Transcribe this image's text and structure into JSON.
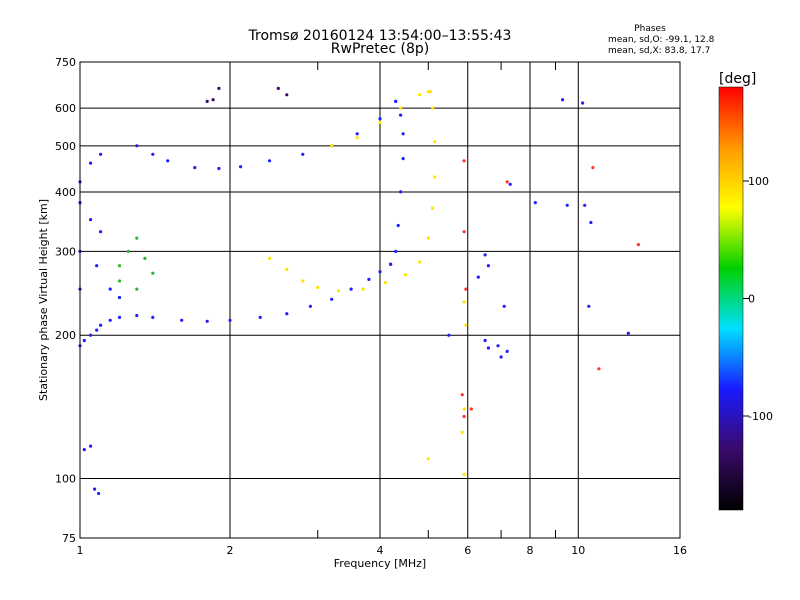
{
  "chart_data": {
    "type": "scatter",
    "title": "Tromsø 20160124 13:54:00–13:55:43",
    "subtitle": "RwPretec (8p)",
    "xlabel": "Frequency [MHz]",
    "ylabel": "Stationary phase Virtual Height [km]",
    "x_scale": "log",
    "y_scale": "log",
    "xlim": [
      1,
      16
    ],
    "ylim": [
      75,
      750
    ],
    "x_ticks": [
      1,
      2,
      4,
      6,
      8,
      10,
      16
    ],
    "x_tick_labels": [
      "1",
      "2",
      "4",
      "6",
      "8",
      "10",
      "16"
    ],
    "x_minor_ticks": [
      3,
      5,
      7,
      9
    ],
    "y_ticks": [
      75,
      100,
      200,
      300,
      400,
      500,
      600,
      750
    ],
    "y_tick_labels": [
      "75",
      "100",
      "200",
      "300",
      "400",
      "500",
      "600",
      "750"
    ],
    "grid": true,
    "stats": {
      "heading": "Phases",
      "line_o": "mean, sd,O: -99.1, 12.8",
      "line_x": "mean, sd,X:  83.8, 17.7"
    },
    "colorbar": {
      "label": "[deg]",
      "range": [
        -180,
        180
      ],
      "ticks": [
        100,
        0,
        -100
      ],
      "tick_labels": [
        "100",
        "0",
        "-100"
      ],
      "colors": [
        "#000000",
        "#3a0a6a",
        "#1a1aff",
        "#00e0ff",
        "#00d000",
        "#ffff00",
        "#ff9900",
        "#ff0000"
      ]
    },
    "series": [
      {
        "color": "#1e1eff",
        "phase": -100,
        "points": [
          [
            1.0,
            190
          ],
          [
            1.02,
            195
          ],
          [
            1.05,
            200
          ],
          [
            1.08,
            205
          ],
          [
            1.1,
            210
          ],
          [
            1.15,
            215
          ],
          [
            1.2,
            218
          ],
          [
            1.3,
            220
          ],
          [
            1.4,
            218
          ],
          [
            1.6,
            215
          ],
          [
            1.8,
            214
          ],
          [
            2.0,
            215
          ],
          [
            2.3,
            218
          ],
          [
            2.6,
            222
          ],
          [
            2.9,
            230
          ],
          [
            3.2,
            238
          ],
          [
            3.5,
            250
          ],
          [
            3.8,
            262
          ],
          [
            4.0,
            272
          ],
          [
            4.2,
            282
          ]
        ]
      },
      {
        "color": "#1e1eff",
        "phase": -100,
        "points": [
          [
            4.2,
            282
          ],
          [
            4.3,
            300
          ],
          [
            4.35,
            340
          ],
          [
            4.4,
            400
          ],
          [
            4.45,
            470
          ],
          [
            4.45,
            530
          ],
          [
            4.4,
            580
          ],
          [
            4.3,
            620
          ]
        ]
      },
      {
        "color": "#1e1eff",
        "phase": -100,
        "points": [
          [
            1.3,
            500
          ],
          [
            1.4,
            480
          ],
          [
            1.5,
            465
          ],
          [
            1.7,
            450
          ],
          [
            1.9,
            448
          ],
          [
            2.1,
            452
          ],
          [
            2.4,
            465
          ],
          [
            2.8,
            480
          ],
          [
            3.2,
            500
          ],
          [
            3.6,
            530
          ],
          [
            4.0,
            570
          ],
          [
            4.3,
            620
          ]
        ]
      },
      {
        "color": "#ffe400",
        "phase": 100,
        "points": [
          [
            2.4,
            290
          ],
          [
            2.6,
            275
          ],
          [
            2.8,
            260
          ],
          [
            3.0,
            252
          ],
          [
            3.3,
            248
          ],
          [
            3.7,
            250
          ],
          [
            4.1,
            258
          ],
          [
            4.5,
            268
          ],
          [
            4.8,
            285
          ],
          [
            5.0,
            320
          ],
          [
            5.1,
            370
          ],
          [
            5.15,
            430
          ],
          [
            5.15,
            510
          ],
          [
            5.1,
            600
          ],
          [
            5.05,
            650
          ]
        ]
      },
      {
        "color": "#ffe400",
        "phase": 100,
        "points": [
          [
            3.2,
            500
          ],
          [
            3.6,
            520
          ],
          [
            4.0,
            560
          ],
          [
            4.4,
            600
          ],
          [
            4.8,
            640
          ],
          [
            5.0,
            650
          ]
        ]
      },
      {
        "color": "#2ab82a",
        "phase": 20,
        "points": [
          [
            1.2,
            280
          ],
          [
            1.25,
            300
          ],
          [
            1.3,
            320
          ],
          [
            1.35,
            290
          ],
          [
            1.4,
            270
          ],
          [
            1.2,
            260
          ],
          [
            1.3,
            250
          ]
        ]
      },
      {
        "color": "#1e1eff",
        "phase": -100,
        "points": [
          [
            1.0,
            420
          ],
          [
            1.05,
            460
          ],
          [
            1.1,
            480
          ],
          [
            1.0,
            380
          ],
          [
            1.05,
            350
          ],
          [
            1.1,
            330
          ],
          [
            1.0,
            300
          ],
          [
            1.08,
            280
          ],
          [
            1.15,
            250
          ],
          [
            1.2,
            240
          ],
          [
            1.0,
            250
          ]
        ]
      },
      {
        "color": "#1e1eff",
        "phase": -100,
        "points": [
          [
            1.02,
            115
          ],
          [
            1.05,
            117
          ],
          [
            1.07,
            95
          ],
          [
            1.09,
            93
          ]
        ]
      },
      {
        "color": "#ffe400",
        "phase": 100,
        "points": [
          [
            5.9,
            235
          ],
          [
            5.95,
            210
          ],
          [
            5.9,
            140
          ],
          [
            5.85,
            125
          ],
          [
            5.0,
            110
          ],
          [
            5.9,
            102
          ]
        ]
      },
      {
        "color": "#1e1eff",
        "phase": -100,
        "points": [
          [
            6.5,
            295
          ],
          [
            6.6,
            280
          ],
          [
            6.5,
            195
          ],
          [
            6.6,
            188
          ],
          [
            6.9,
            190
          ],
          [
            7.2,
            185
          ],
          [
            7.0,
            180
          ],
          [
            7.1,
            230
          ],
          [
            6.3,
            265
          ]
        ]
      },
      {
        "color": "#ff3333",
        "phase": 150,
        "points": [
          [
            5.9,
            465
          ],
          [
            5.9,
            330
          ],
          [
            5.95,
            250
          ],
          [
            5.85,
            150
          ],
          [
            5.9,
            135
          ],
          [
            6.1,
            140
          ],
          [
            7.2,
            420
          ],
          [
            10.7,
            450
          ],
          [
            13.2,
            310
          ],
          [
            11.0,
            170
          ]
        ]
      },
      {
        "color": "#1e1eff",
        "phase": -100,
        "points": [
          [
            9.3,
            625
          ],
          [
            10.2,
            615
          ],
          [
            7.3,
            415
          ],
          [
            8.2,
            380
          ],
          [
            9.5,
            375
          ],
          [
            10.3,
            375
          ],
          [
            10.6,
            345
          ],
          [
            12.6,
            202
          ],
          [
            10.5,
            230
          ],
          [
            5.5,
            200
          ]
        ]
      },
      {
        "color": "#3a0a6a",
        "phase": -150,
        "points": [
          [
            1.8,
            620
          ],
          [
            1.85,
            625
          ],
          [
            2.6,
            640
          ],
          [
            2.5,
            660
          ],
          [
            1.9,
            660
          ]
        ]
      }
    ]
  }
}
